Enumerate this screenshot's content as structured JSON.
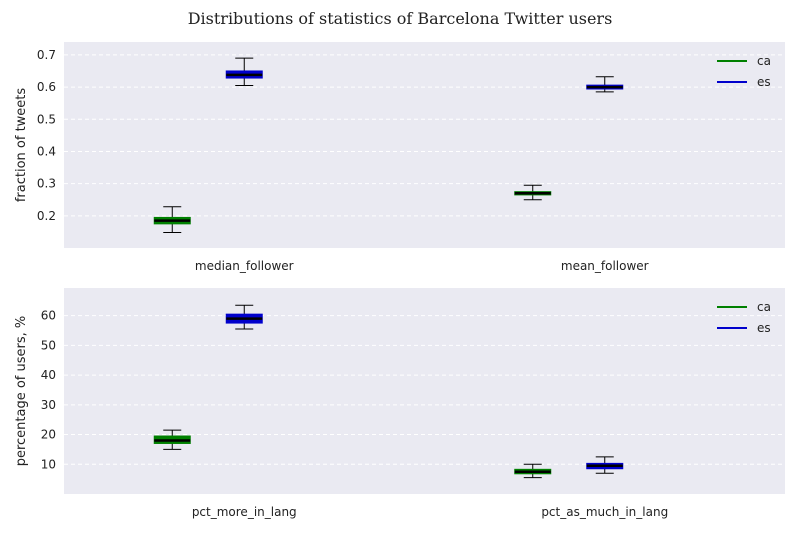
{
  "figure_title": "Distributions of statistics of Barcelona Twitter users",
  "colors": {
    "ca": "#008000",
    "es": "#0000cc",
    "axes_bg": "#eaeaf2",
    "grid": "#ffffff",
    "median": "#000000"
  },
  "chart_data": [
    {
      "type": "box",
      "ylabel": "fraction of tweets",
      "ylim": [
        0.1,
        0.74
      ],
      "yticks": [
        0.2,
        0.3,
        0.4,
        0.5,
        0.6,
        0.7
      ],
      "ytick_labels": [
        "0.2",
        "0.3",
        "0.4",
        "0.5",
        "0.6",
        "0.7"
      ],
      "grid": true,
      "legend": "top-right",
      "categories": [
        "median_follower",
        "mean_follower"
      ],
      "series": [
        {
          "name": "ca",
          "boxes": [
            {
              "whislo": 0.148,
              "q1": 0.175,
              "med": 0.185,
              "q3": 0.195,
              "whishi": 0.228
            },
            {
              "whislo": 0.25,
              "q1": 0.265,
              "med": 0.27,
              "q3": 0.275,
              "whishi": 0.295
            }
          ]
        },
        {
          "name": "es",
          "boxes": [
            {
              "whislo": 0.605,
              "q1": 0.628,
              "med": 0.638,
              "q3": 0.65,
              "whishi": 0.69
            },
            {
              "whislo": 0.585,
              "q1": 0.594,
              "med": 0.6,
              "q3": 0.606,
              "whishi": 0.632
            }
          ]
        }
      ]
    },
    {
      "type": "box",
      "ylabel": "percentage of users, %",
      "ylim": [
        0,
        69.3
      ],
      "yticks": [
        10,
        20,
        30,
        40,
        50,
        60
      ],
      "ytick_labels": [
        "10",
        "20",
        "30",
        "40",
        "50",
        "60"
      ],
      "grid": true,
      "legend": "top-right",
      "categories": [
        "pct_more_in_lang",
        "pct_as_much_in_lang"
      ],
      "series": [
        {
          "name": "ca",
          "boxes": [
            {
              "whislo": 15.0,
              "q1": 17.0,
              "med": 18.0,
              "q3": 19.5,
              "whishi": 21.5
            },
            {
              "whislo": 5.5,
              "q1": 6.8,
              "med": 7.5,
              "q3": 8.3,
              "whishi": 10.0
            }
          ]
        },
        {
          "name": "es",
          "boxes": [
            {
              "whislo": 55.5,
              "q1": 57.5,
              "med": 59.0,
              "q3": 60.5,
              "whishi": 63.5
            },
            {
              "whislo": 7.0,
              "q1": 8.5,
              "med": 9.5,
              "q3": 10.3,
              "whishi": 12.5
            }
          ]
        }
      ]
    }
  ]
}
